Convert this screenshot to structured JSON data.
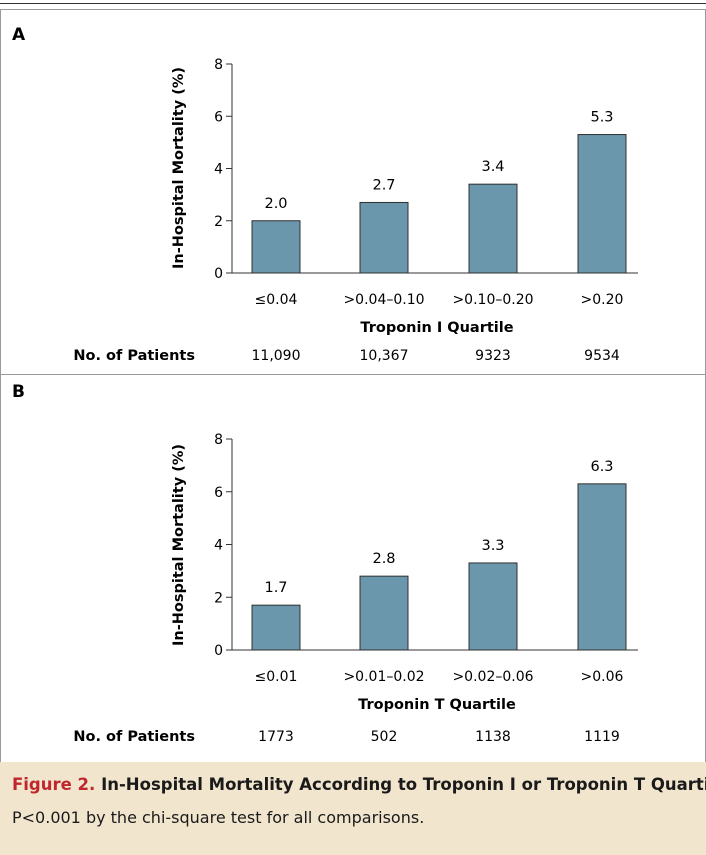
{
  "chart_data": [
    {
      "type": "bar",
      "panel_label": "A",
      "categories": [
        "≤0.04",
        ">0.04–0.10",
        ">0.10–0.20",
        ">0.20"
      ],
      "values": [
        2.0,
        2.7,
        3.4,
        5.3
      ],
      "value_labels": [
        "2.0",
        "2.7",
        "3.4",
        "5.3"
      ],
      "xlabel": "Troponin I Quartile",
      "ylabel": "In-Hospital Mortality (%)",
      "ylim": [
        0,
        8
      ],
      "yticks": [
        "0",
        "2",
        "4",
        "6",
        "8"
      ],
      "grid": false,
      "bar_color": "#6b97ad",
      "patients_label": "No. of Patients",
      "patients": [
        "11,090",
        "10,367",
        "9323",
        "9534"
      ]
    },
    {
      "type": "bar",
      "panel_label": "B",
      "categories": [
        "≤0.01",
        ">0.01–0.02",
        ">0.02–0.06",
        ">0.06"
      ],
      "values": [
        1.7,
        2.8,
        3.3,
        6.3
      ],
      "value_labels": [
        "1.7",
        "2.8",
        "3.3",
        "6.3"
      ],
      "xlabel": "Troponin T Quartile",
      "ylabel": "In-Hospital Mortality (%)",
      "ylim": [
        0,
        8
      ],
      "yticks": [
        "0",
        "2",
        "4",
        "6",
        "8"
      ],
      "grid": false,
      "bar_color": "#6b97ad",
      "patients_label": "No. of Patients",
      "patients": [
        "1773",
        "502",
        "1138",
        "1119"
      ]
    }
  ],
  "caption": {
    "figure_label": "Figure 2.",
    "title": "In-Hospital Mortality According to Troponin I or Troponin T Quartile.",
    "note": "P<0.001 by the chi-square test for all comparisons."
  },
  "colors": {
    "bar": "#6b97ad",
    "caption_background": "#f2e5ce",
    "figure_label": "#c0272d"
  }
}
